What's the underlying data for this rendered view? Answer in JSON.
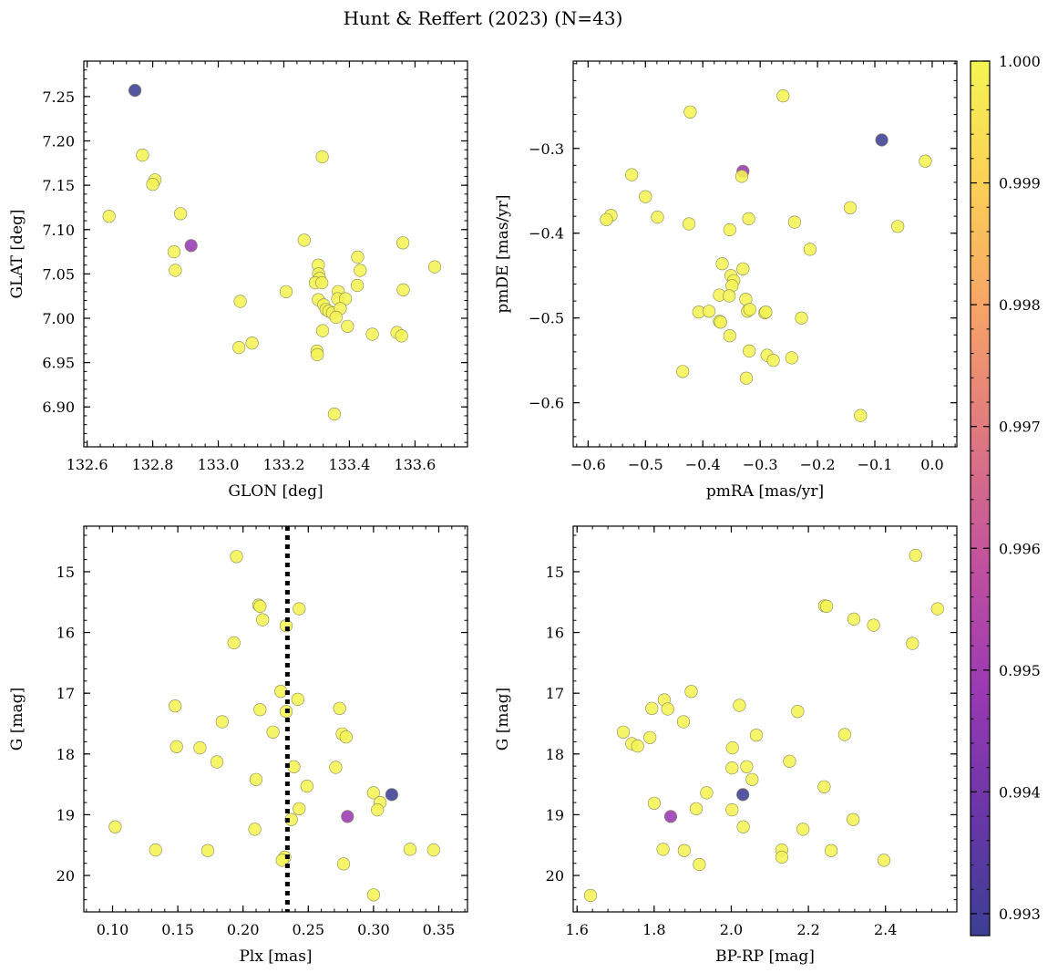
{
  "title": "Hunt & Reffert (2023) (N=43)",
  "colorbar": {
    "colormap": "plasma",
    "min": 0.99282,
    "max": 1.0,
    "ticks": [
      0.993,
      0.994,
      0.995,
      0.996,
      0.997,
      0.998,
      0.999,
      1.0
    ],
    "tick_labels": [
      "0.993",
      "0.994",
      "0.995",
      "0.996",
      "0.997",
      "0.998",
      "0.999",
      "1.000"
    ]
  },
  "chart_data": [
    {
      "type": "scatter",
      "xlabel": "GLON [deg]",
      "ylabel": "GLAT [deg]",
      "xlim": [
        132.59,
        133.76
      ],
      "ylim": [
        6.855,
        7.29
      ],
      "xticks": [
        132.6,
        132.8,
        133.0,
        133.2,
        133.4,
        133.6
      ],
      "xtick_labels": [
        "132.6",
        "132.8",
        "133.0",
        "133.2",
        "133.4",
        "133.6"
      ],
      "yticks": [
        6.9,
        6.95,
        7.0,
        7.05,
        7.1,
        7.15,
        7.2,
        7.25
      ],
      "ytick_labels": [
        "6.90",
        "6.95",
        "7.00",
        "7.05",
        "7.10",
        "7.15",
        "7.20",
        "7.25"
      ],
      "y_inverted": false,
      "points": [
        {
          "x": 132.746,
          "y": 7.257,
          "c": 0.99282
        },
        {
          "x": 132.769,
          "y": 7.184,
          "c": 1.0
        },
        {
          "x": 132.807,
          "y": 7.156,
          "c": 1.0
        },
        {
          "x": 132.8,
          "y": 7.151,
          "c": 1.0
        },
        {
          "x": 132.667,
          "y": 7.115,
          "c": 1.0
        },
        {
          "x": 132.885,
          "y": 7.118,
          "c": 1.0
        },
        {
          "x": 132.917,
          "y": 7.082,
          "c": 0.9948
        },
        {
          "x": 132.865,
          "y": 7.075,
          "c": 1.0
        },
        {
          "x": 132.869,
          "y": 7.054,
          "c": 1.0
        },
        {
          "x": 133.067,
          "y": 7.019,
          "c": 1.0
        },
        {
          "x": 133.063,
          "y": 6.967,
          "c": 1.0
        },
        {
          "x": 133.103,
          "y": 6.972,
          "c": 1.0
        },
        {
          "x": 133.207,
          "y": 7.03,
          "c": 1.0
        },
        {
          "x": 133.317,
          "y": 7.182,
          "c": 1.0
        },
        {
          "x": 133.262,
          "y": 7.088,
          "c": 1.0
        },
        {
          "x": 133.305,
          "y": 7.06,
          "c": 1.0
        },
        {
          "x": 133.306,
          "y": 7.05,
          "c": 1.0
        },
        {
          "x": 133.309,
          "y": 7.045,
          "c": 1.0
        },
        {
          "x": 133.296,
          "y": 7.04,
          "c": 1.0
        },
        {
          "x": 133.316,
          "y": 7.04,
          "c": 1.0
        },
        {
          "x": 133.366,
          "y": 7.03,
          "c": 1.0
        },
        {
          "x": 133.364,
          "y": 7.022,
          "c": 1.0
        },
        {
          "x": 133.388,
          "y": 7.022,
          "c": 1.0
        },
        {
          "x": 133.305,
          "y": 7.021,
          "c": 1.0
        },
        {
          "x": 133.322,
          "y": 7.015,
          "c": 1.0
        },
        {
          "x": 133.329,
          "y": 7.01,
          "c": 1.0
        },
        {
          "x": 133.337,
          "y": 7.008,
          "c": 1.0
        },
        {
          "x": 133.348,
          "y": 7.006,
          "c": 1.0
        },
        {
          "x": 133.372,
          "y": 7.011,
          "c": 1.0
        },
        {
          "x": 133.359,
          "y": 7.001,
          "c": 1.0
        },
        {
          "x": 133.318,
          "y": 6.986,
          "c": 1.0
        },
        {
          "x": 133.394,
          "y": 6.991,
          "c": 1.0
        },
        {
          "x": 133.425,
          "y": 7.069,
          "c": 1.0
        },
        {
          "x": 133.433,
          "y": 7.054,
          "c": 1.0
        },
        {
          "x": 133.424,
          "y": 7.037,
          "c": 1.0
        },
        {
          "x": 133.47,
          "y": 6.982,
          "c": 1.0
        },
        {
          "x": 133.301,
          "y": 6.963,
          "c": 1.0
        },
        {
          "x": 133.302,
          "y": 6.959,
          "c": 1.0
        },
        {
          "x": 133.354,
          "y": 6.892,
          "c": 1.0
        },
        {
          "x": 133.563,
          "y": 7.085,
          "c": 1.0
        },
        {
          "x": 133.564,
          "y": 7.032,
          "c": 1.0
        },
        {
          "x": 133.545,
          "y": 6.984,
          "c": 1.0
        },
        {
          "x": 133.559,
          "y": 6.98,
          "c": 1.0
        },
        {
          "x": 133.66,
          "y": 7.058,
          "c": 1.0
        }
      ]
    },
    {
      "type": "scatter",
      "xlabel": "pmRA [mas/yr]",
      "ylabel": "pmDE [mas/yr]",
      "xlim": [
        -0.626,
        0.043
      ],
      "ylim": [
        -0.652,
        -0.197
      ],
      "xticks": [
        -0.6,
        -0.5,
        -0.4,
        -0.3,
        -0.2,
        -0.1,
        0.0
      ],
      "xtick_labels": [
        "−0.6",
        "−0.5",
        "−0.4",
        "−0.3",
        "−0.2",
        "−0.1",
        "0.0"
      ],
      "yticks": [
        -0.6,
        -0.5,
        -0.4,
        -0.3
      ],
      "ytick_labels": [
        "−0.6",
        "−0.5",
        "−0.4",
        "−0.3"
      ],
      "y_inverted": false,
      "points": [
        {
          "x": -0.26,
          "y": -0.238,
          "c": 1.0
        },
        {
          "x": -0.422,
          "y": -0.257,
          "c": 1.0
        },
        {
          "x": -0.088,
          "y": -0.29,
          "c": 0.99282
        },
        {
          "x": -0.33,
          "y": -0.327,
          "c": 0.9948
        },
        {
          "x": -0.332,
          "y": -0.333,
          "c": 1.0
        },
        {
          "x": -0.012,
          "y": -0.315,
          "c": 1.0
        },
        {
          "x": -0.524,
          "y": -0.331,
          "c": 1.0
        },
        {
          "x": -0.5,
          "y": -0.357,
          "c": 1.0
        },
        {
          "x": -0.56,
          "y": -0.379,
          "c": 1.0
        },
        {
          "x": -0.568,
          "y": -0.384,
          "c": 1.0
        },
        {
          "x": -0.479,
          "y": -0.381,
          "c": 1.0
        },
        {
          "x": -0.424,
          "y": -0.389,
          "c": 1.0
        },
        {
          "x": -0.32,
          "y": -0.383,
          "c": 1.0
        },
        {
          "x": -0.353,
          "y": -0.396,
          "c": 1.0
        },
        {
          "x": -0.24,
          "y": -0.387,
          "c": 1.0
        },
        {
          "x": -0.143,
          "y": -0.37,
          "c": 1.0
        },
        {
          "x": -0.06,
          "y": -0.392,
          "c": 1.0
        },
        {
          "x": -0.213,
          "y": -0.419,
          "c": 1.0
        },
        {
          "x": -0.366,
          "y": -0.436,
          "c": 1.0
        },
        {
          "x": -0.33,
          "y": -0.442,
          "c": 1.0
        },
        {
          "x": -0.351,
          "y": -0.45,
          "c": 1.0
        },
        {
          "x": -0.346,
          "y": -0.456,
          "c": 1.0
        },
        {
          "x": -0.349,
          "y": -0.462,
          "c": 1.0
        },
        {
          "x": -0.371,
          "y": -0.473,
          "c": 1.0
        },
        {
          "x": -0.354,
          "y": -0.474,
          "c": 1.0
        },
        {
          "x": -0.325,
          "y": -0.478,
          "c": 1.0
        },
        {
          "x": -0.322,
          "y": -0.492,
          "c": 1.0
        },
        {
          "x": -0.318,
          "y": -0.49,
          "c": 1.0
        },
        {
          "x": -0.292,
          "y": -0.494,
          "c": 1.0
        },
        {
          "x": -0.29,
          "y": -0.493,
          "c": 1.0
        },
        {
          "x": -0.407,
          "y": -0.493,
          "c": 1.0
        },
        {
          "x": -0.389,
          "y": -0.492,
          "c": 1.0
        },
        {
          "x": -0.371,
          "y": -0.504,
          "c": 1.0
        },
        {
          "x": -0.369,
          "y": -0.505,
          "c": 1.0
        },
        {
          "x": -0.228,
          "y": -0.5,
          "c": 1.0
        },
        {
          "x": -0.353,
          "y": -0.521,
          "c": 1.0
        },
        {
          "x": -0.319,
          "y": -0.539,
          "c": 1.0
        },
        {
          "x": -0.288,
          "y": -0.544,
          "c": 1.0
        },
        {
          "x": -0.277,
          "y": -0.55,
          "c": 1.0
        },
        {
          "x": -0.245,
          "y": -0.547,
          "c": 1.0
        },
        {
          "x": -0.435,
          "y": -0.563,
          "c": 1.0
        },
        {
          "x": -0.324,
          "y": -0.571,
          "c": 1.0
        },
        {
          "x": -0.125,
          "y": -0.615,
          "c": 1.0
        }
      ]
    },
    {
      "type": "scatter",
      "xlabel": "Plx [mas]",
      "ylabel": "G [mag]",
      "xlim": [
        0.078,
        0.372
      ],
      "ylim": [
        14.25,
        20.6
      ],
      "xticks": [
        0.1,
        0.15,
        0.2,
        0.25,
        0.3,
        0.35
      ],
      "xtick_labels": [
        "0.10",
        "0.15",
        "0.20",
        "0.25",
        "0.30",
        "0.35"
      ],
      "yticks": [
        15,
        16,
        17,
        18,
        19,
        20
      ],
      "ytick_labels": [
        "15",
        "16",
        "17",
        "18",
        "19",
        "20"
      ],
      "y_inverted": true,
      "reference_line": {
        "x": 0.234,
        "style": "dotted",
        "color": "#000000"
      },
      "points": [
        {
          "x": 0.195,
          "y": 14.75,
          "c": 1.0
        },
        {
          "x": 0.212,
          "y": 15.55,
          "c": 1.0
        },
        {
          "x": 0.213,
          "y": 15.57,
          "c": 1.0
        },
        {
          "x": 0.243,
          "y": 15.61,
          "c": 1.0
        },
        {
          "x": 0.215,
          "y": 15.79,
          "c": 1.0
        },
        {
          "x": 0.233,
          "y": 15.89,
          "c": 1.0
        },
        {
          "x": 0.193,
          "y": 16.17,
          "c": 1.0
        },
        {
          "x": 0.229,
          "y": 16.97,
          "c": 1.0
        },
        {
          "x": 0.242,
          "y": 17.1,
          "c": 1.0
        },
        {
          "x": 0.148,
          "y": 17.21,
          "c": 1.0
        },
        {
          "x": 0.213,
          "y": 17.27,
          "c": 1.0
        },
        {
          "x": 0.233,
          "y": 17.3,
          "c": 1.0
        },
        {
          "x": 0.274,
          "y": 17.25,
          "c": 1.0
        },
        {
          "x": 0.184,
          "y": 17.47,
          "c": 1.0
        },
        {
          "x": 0.223,
          "y": 17.64,
          "c": 1.0
        },
        {
          "x": 0.276,
          "y": 17.67,
          "c": 1.0
        },
        {
          "x": 0.279,
          "y": 17.72,
          "c": 1.0
        },
        {
          "x": 0.149,
          "y": 17.88,
          "c": 1.0
        },
        {
          "x": 0.167,
          "y": 17.9,
          "c": 1.0
        },
        {
          "x": 0.18,
          "y": 18.13,
          "c": 1.0
        },
        {
          "x": 0.239,
          "y": 18.21,
          "c": 1.0
        },
        {
          "x": 0.271,
          "y": 18.22,
          "c": 1.0
        },
        {
          "x": 0.21,
          "y": 18.42,
          "c": 1.0
        },
        {
          "x": 0.249,
          "y": 18.53,
          "c": 1.0
        },
        {
          "x": 0.3,
          "y": 18.64,
          "c": 1.0
        },
        {
          "x": 0.314,
          "y": 18.67,
          "c": 0.99282
        },
        {
          "x": 0.305,
          "y": 18.8,
          "c": 1.0
        },
        {
          "x": 0.243,
          "y": 18.9,
          "c": 1.0
        },
        {
          "x": 0.303,
          "y": 18.92,
          "c": 1.0
        },
        {
          "x": 0.28,
          "y": 19.03,
          "c": 0.9948
        },
        {
          "x": 0.237,
          "y": 19.08,
          "c": 1.0
        },
        {
          "x": 0.102,
          "y": 19.2,
          "c": 1.0
        },
        {
          "x": 0.209,
          "y": 19.24,
          "c": 1.0
        },
        {
          "x": 0.133,
          "y": 19.58,
          "c": 1.0
        },
        {
          "x": 0.173,
          "y": 19.59,
          "c": 1.0
        },
        {
          "x": 0.328,
          "y": 19.57,
          "c": 1.0
        },
        {
          "x": 0.346,
          "y": 19.58,
          "c": 1.0
        },
        {
          "x": 0.232,
          "y": 19.7,
          "c": 1.0
        },
        {
          "x": 0.23,
          "y": 19.75,
          "c": 1.0
        },
        {
          "x": 0.277,
          "y": 19.81,
          "c": 1.0
        },
        {
          "x": 0.3,
          "y": 20.32,
          "c": 1.0
        }
      ]
    },
    {
      "type": "scatter",
      "xlabel": "BP-RP [mag]",
      "ylabel": "G [mag]",
      "xlim": [
        1.59,
        2.585
      ],
      "ylim": [
        14.25,
        20.6
      ],
      "xticks": [
        1.6,
        1.8,
        2.0,
        2.2,
        2.4
      ],
      "xtick_labels": [
        "1.6",
        "1.8",
        "2.0",
        "2.2",
        "2.4"
      ],
      "yticks": [
        15,
        16,
        17,
        18,
        19,
        20
      ],
      "ytick_labels": [
        "15",
        "16",
        "17",
        "18",
        "19",
        "20"
      ],
      "y_inverted": true,
      "points": [
        {
          "x": 2.478,
          "y": 14.73,
          "c": 1.0
        },
        {
          "x": 2.242,
          "y": 15.56,
          "c": 1.0
        },
        {
          "x": 2.247,
          "y": 15.57,
          "c": 1.0
        },
        {
          "x": 2.535,
          "y": 15.61,
          "c": 1.0
        },
        {
          "x": 2.318,
          "y": 15.78,
          "c": 1.0
        },
        {
          "x": 2.369,
          "y": 15.88,
          "c": 1.0
        },
        {
          "x": 2.47,
          "y": 16.18,
          "c": 1.0
        },
        {
          "x": 1.896,
          "y": 16.97,
          "c": 1.0
        },
        {
          "x": 1.826,
          "y": 17.11,
          "c": 1.0
        },
        {
          "x": 2.021,
          "y": 17.2,
          "c": 1.0
        },
        {
          "x": 1.794,
          "y": 17.25,
          "c": 1.0
        },
        {
          "x": 1.835,
          "y": 17.26,
          "c": 1.0
        },
        {
          "x": 2.172,
          "y": 17.3,
          "c": 1.0
        },
        {
          "x": 1.876,
          "y": 17.47,
          "c": 1.0
        },
        {
          "x": 1.72,
          "y": 17.64,
          "c": 1.0
        },
        {
          "x": 2.065,
          "y": 17.69,
          "c": 1.0
        },
        {
          "x": 2.294,
          "y": 17.68,
          "c": 1.0
        },
        {
          "x": 1.789,
          "y": 17.73,
          "c": 1.0
        },
        {
          "x": 1.742,
          "y": 17.83,
          "c": 1.0
        },
        {
          "x": 1.757,
          "y": 17.87,
          "c": 1.0
        },
        {
          "x": 2.003,
          "y": 17.9,
          "c": 1.0
        },
        {
          "x": 2.151,
          "y": 18.12,
          "c": 1.0
        },
        {
          "x": 2.04,
          "y": 18.21,
          "c": 1.0
        },
        {
          "x": 2.002,
          "y": 18.23,
          "c": 1.0
        },
        {
          "x": 2.054,
          "y": 18.42,
          "c": 1.0
        },
        {
          "x": 2.241,
          "y": 18.54,
          "c": 1.0
        },
        {
          "x": 1.936,
          "y": 18.64,
          "c": 1.0
        },
        {
          "x": 2.03,
          "y": 18.67,
          "c": 0.99282
        },
        {
          "x": 1.8,
          "y": 18.81,
          "c": 1.0
        },
        {
          "x": 1.909,
          "y": 18.9,
          "c": 1.0
        },
        {
          "x": 2.002,
          "y": 18.92,
          "c": 1.0
        },
        {
          "x": 1.843,
          "y": 19.03,
          "c": 0.9948
        },
        {
          "x": 2.316,
          "y": 19.08,
          "c": 1.0
        },
        {
          "x": 2.031,
          "y": 19.2,
          "c": 1.0
        },
        {
          "x": 2.186,
          "y": 19.24,
          "c": 1.0
        },
        {
          "x": 1.823,
          "y": 19.57,
          "c": 1.0
        },
        {
          "x": 1.878,
          "y": 19.59,
          "c": 1.0
        },
        {
          "x": 2.131,
          "y": 19.58,
          "c": 1.0
        },
        {
          "x": 2.259,
          "y": 19.59,
          "c": 1.0
        },
        {
          "x": 2.131,
          "y": 19.7,
          "c": 1.0
        },
        {
          "x": 2.396,
          "y": 19.75,
          "c": 1.0
        },
        {
          "x": 1.917,
          "y": 19.82,
          "c": 1.0
        },
        {
          "x": 1.635,
          "y": 20.33,
          "c": 1.0
        }
      ]
    }
  ]
}
